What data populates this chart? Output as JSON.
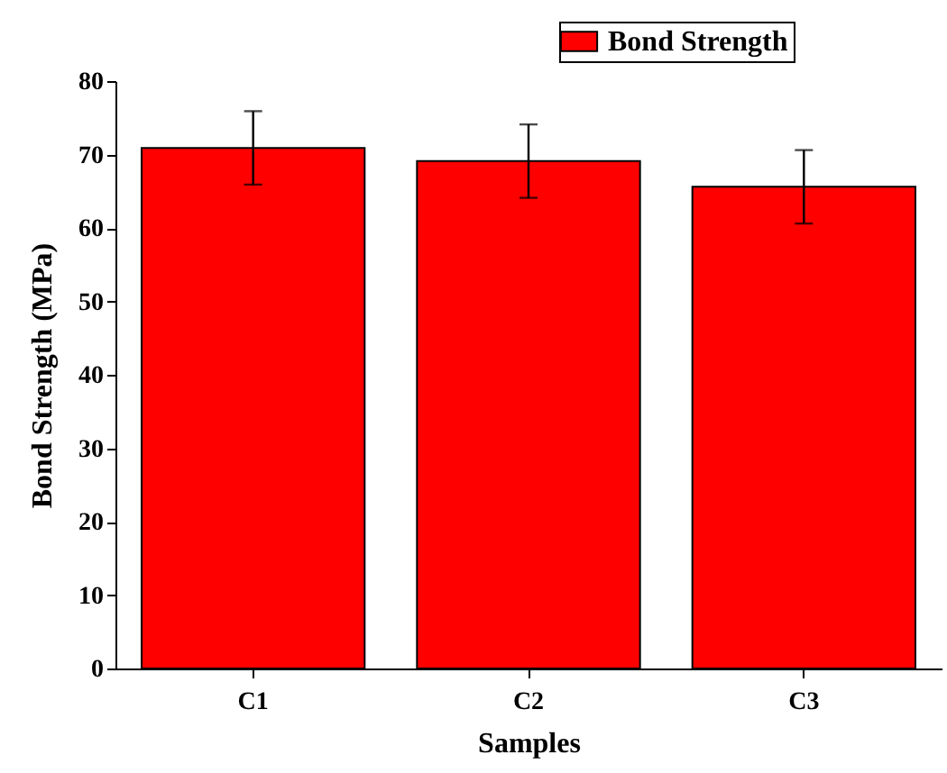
{
  "chart_data": {
    "type": "bar",
    "xlabel": "Samples",
    "ylabel": "Bond Strength (MPa)",
    "categories": [
      "C1",
      "C2",
      "C3"
    ],
    "series": [
      {
        "name": "Bond Strength",
        "color": "#ff0000",
        "values": [
          70.9,
          69.1,
          65.6
        ],
        "errors": [
          5,
          5,
          5
        ]
      }
    ],
    "ylim": [
      0,
      80
    ],
    "yticks": [
      0,
      10,
      20,
      30,
      40,
      50,
      60,
      70,
      80
    ],
    "legend": "top right"
  }
}
